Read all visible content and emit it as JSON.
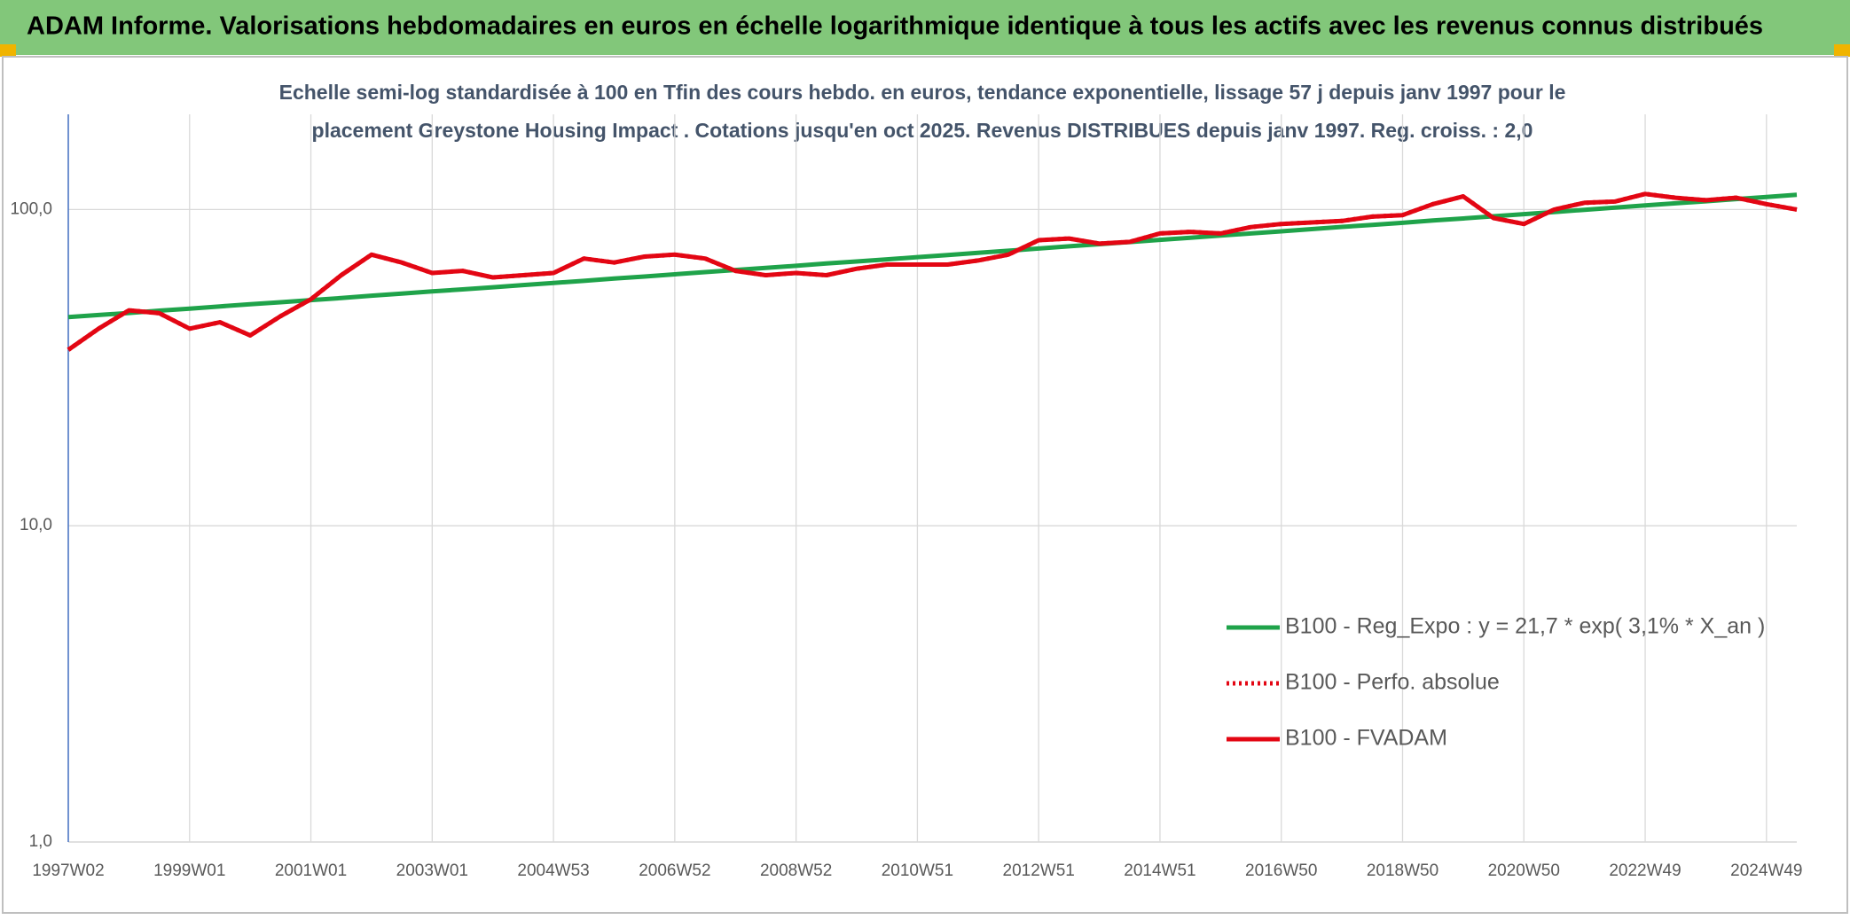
{
  "chart_data": {
    "type": "line",
    "title": "ADAM Informe. Valorisations hebdomadaires en euros en échelle logarithmique identique à tous les actifs avec les revenus connus distribués",
    "subtitle": [
      "Echelle semi-log standardisée à 100 en Tfin des cours hebdo. en euros, tendance exponentielle, lissage 57 j depuis janv 1997 pour le",
      "placement Greystone Housing Impact . Cotations jusqu'en oct 2025. Revenus DISTRIBUES depuis janv 1997. Reg. croiss. : 2,0"
    ],
    "categories": [
      "1997W02",
      null,
      null,
      null,
      "1999W01",
      null,
      null,
      null,
      "2001W01",
      null,
      null,
      null,
      "2003W01",
      null,
      null,
      null,
      "2004W53",
      null,
      null,
      null,
      "2006W52",
      null,
      null,
      null,
      "2008W52",
      null,
      null,
      null,
      "2010W51",
      null,
      null,
      null,
      "2012W51",
      null,
      null,
      null,
      "2014W51",
      null,
      null,
      null,
      "2016W50",
      null,
      null,
      null,
      "2018W50",
      null,
      null,
      null,
      "2020W50",
      null,
      null,
      null,
      "2022W49",
      null,
      null,
      null,
      "2024W49",
      null
    ],
    "series": [
      {
        "name": "B100 - Reg_Expo : y = 21,7 * exp( 3,1% *  X_an )",
        "color": "#1fa34a",
        "style": "solid",
        "values": [
          45.7,
          46.4,
          47.1,
          47.9,
          48.6,
          49.4,
          50.2,
          50.9,
          51.7,
          52.5,
          53.4,
          54.2,
          55.1,
          55.9,
          56.8,
          57.7,
          58.6,
          59.5,
          60.5,
          61.4,
          62.4,
          63.4,
          64.4,
          65.4,
          66.4,
          67.5,
          68.5,
          69.6,
          70.7,
          71.8,
          73.0,
          74.1,
          75.3,
          76.5,
          77.7,
          78.9,
          80.2,
          81.4,
          82.7,
          84.0,
          85.3,
          86.7,
          88.1,
          89.4,
          90.8,
          92.3,
          93.7,
          95.2,
          96.7,
          98.2,
          99.8,
          101.4,
          103.0,
          104.6,
          106.2,
          107.9,
          109.6,
          111.3
        ]
      },
      {
        "name": "B100 - Perfo. absolue",
        "color": "#e30613",
        "style": "dotted",
        "values": [
          36,
          42,
          48,
          47,
          42,
          44,
          40,
          46,
          52,
          62,
          72,
          68,
          63,
          64,
          61,
          62,
          63,
          70,
          68,
          71,
          72,
          70,
          64,
          62,
          63,
          62,
          65,
          67,
          67,
          67,
          69,
          72,
          80,
          81,
          78,
          79,
          84,
          85,
          84,
          88,
          90,
          91,
          92,
          95,
          96,
          104,
          110,
          94,
          90,
          100,
          105,
          106,
          112,
          109,
          107,
          109,
          104,
          100
        ]
      },
      {
        "name": "B100 - FVADAM",
        "color": "#e30613",
        "style": "solid",
        "values": [
          36,
          42,
          48,
          47,
          42,
          44,
          40,
          46,
          52,
          62,
          72,
          68,
          63,
          64,
          61,
          62,
          63,
          70,
          68,
          71,
          72,
          70,
          64,
          62,
          63,
          62,
          65,
          67,
          67,
          67,
          69,
          72,
          80,
          81,
          78,
          79,
          84,
          85,
          84,
          88,
          90,
          91,
          92,
          95,
          96,
          104,
          110,
          94,
          90,
          100,
          105,
          106,
          112,
          109,
          107,
          109,
          104,
          100
        ]
      }
    ],
    "log_y": true,
    "ylim": [
      1,
      200
    ],
    "yticks": [
      {
        "value": 1,
        "label": "1,0"
      },
      {
        "value": 10,
        "label": "10,0"
      },
      {
        "value": 100,
        "label": "100,0"
      }
    ],
    "grid": true,
    "legend": "lower right"
  }
}
